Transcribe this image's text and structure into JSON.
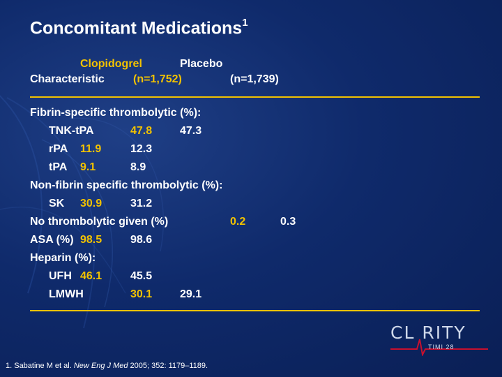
{
  "slide": {
    "title": "Concomitant Medications",
    "title_superscript": "1"
  },
  "header": {
    "characteristic": "Characteristic",
    "col1_name": "Clopidogrel",
    "col1_n": "(n=1,752)",
    "col2_name": "Placebo",
    "col2_n": "(n=1,739)"
  },
  "rows": [
    {
      "label": "Fibrin-specific thrombolytic (%):",
      "v1": "",
      "v2": ""
    },
    {
      "label": "TNK-tPA",
      "v1": "47.8",
      "v2": "47.3"
    },
    {
      "label": "rPA",
      "v1": "11.9",
      "v2": "12.3"
    },
    {
      "label": "tPA",
      "v1": "9.1",
      "v2": "8.9"
    },
    {
      "label": "Non-fibrin specific thrombolytic (%):",
      "v1": "",
      "v2": ""
    },
    {
      "label": "SK",
      "v1": "30.9",
      "v2": "31.2"
    },
    {
      "label": "No thrombolytic given (%)",
      "v1": "0.2",
      "v2": "0.3"
    },
    {
      "label": "ASA (%)",
      "v1": "98.5",
      "v2": "98.6"
    },
    {
      "label": "Heparin (%):",
      "v1": "",
      "v2": ""
    },
    {
      "label": "UFH",
      "v1": "46.1",
      "v2": "45.5"
    },
    {
      "label": "LMWH",
      "v1": "30.1",
      "v2": "29.1"
    }
  ],
  "footnote": {
    "prefix": "1. Sabatine M et al. ",
    "journal": "New Eng J Med",
    "suffix": " 2005; 352: 1179–1189."
  },
  "logo": {
    "text": "CL RITY",
    "subtext": "TIMI 28"
  },
  "colors": {
    "accent": "#f2c200",
    "background": "#0f2a6b",
    "text": "#ffffff"
  }
}
